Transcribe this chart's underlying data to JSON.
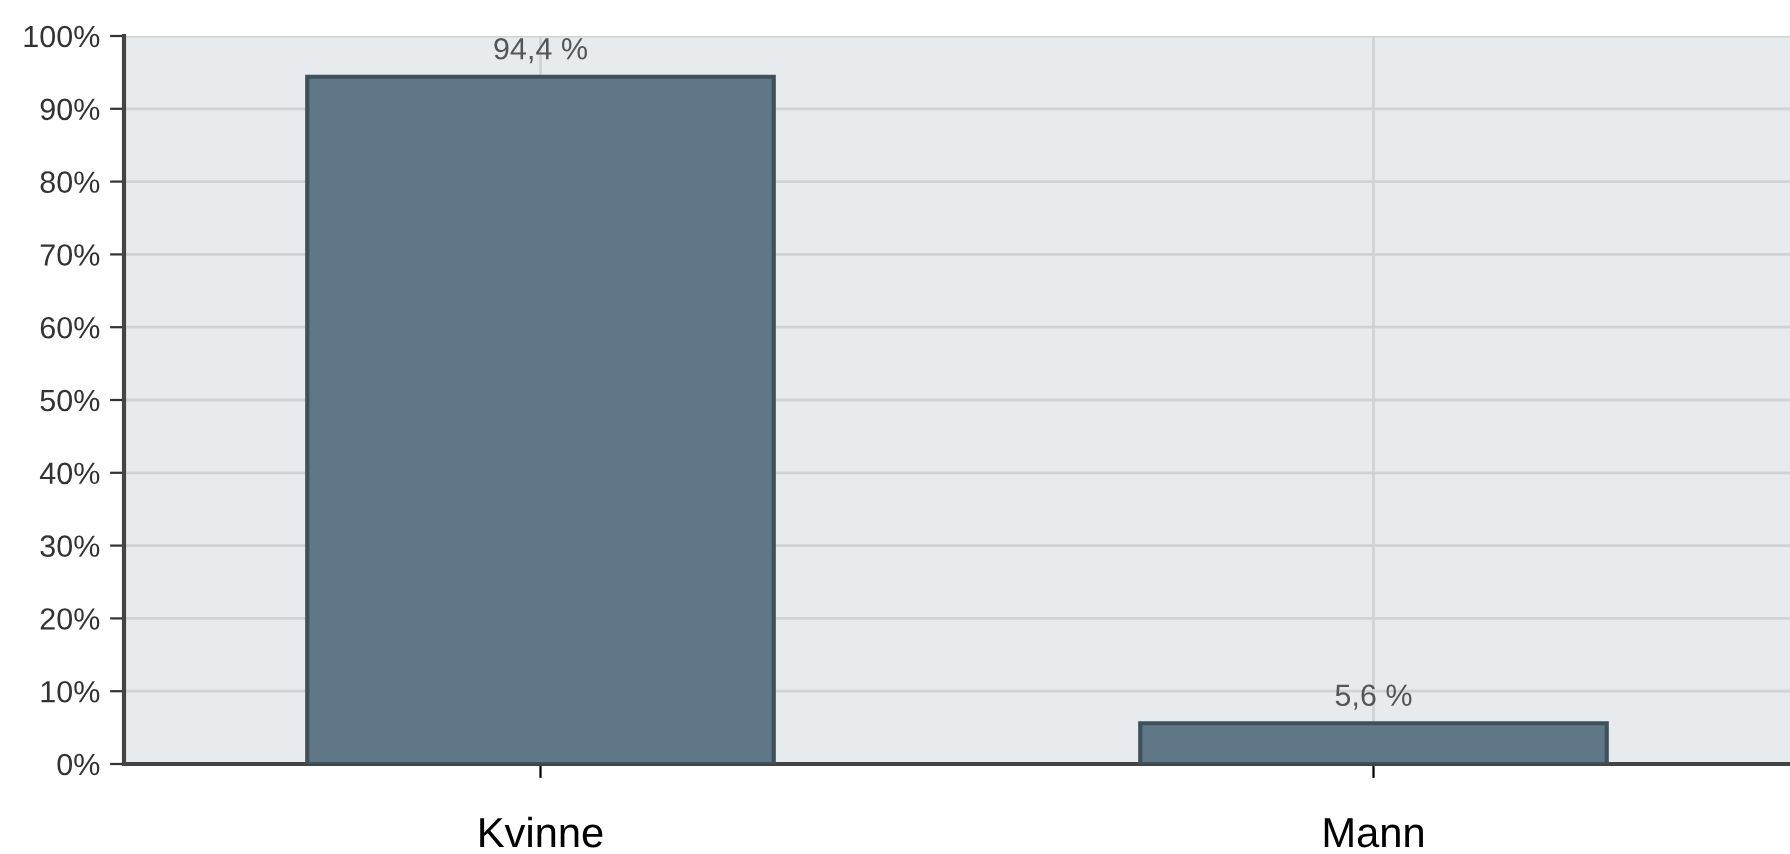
{
  "chart_data": {
    "type": "bar",
    "categories": [
      "Kvinne",
      "Mann"
    ],
    "values": [
      94.4,
      5.6
    ],
    "color": "#5f7786",
    "value_labels": [
      "94,4 %",
      "5,6 %"
    ],
    "ylim": [
      0,
      100
    ],
    "yticks": [
      {
        "value": 0,
        "label": "0%"
      },
      {
        "value": 10,
        "label": "10%"
      },
      {
        "value": 20,
        "label": "20%"
      },
      {
        "value": 30,
        "label": "30%"
      },
      {
        "value": 40,
        "label": "40%"
      },
      {
        "value": 50,
        "label": "50%"
      },
      {
        "value": 60,
        "label": "60%"
      },
      {
        "value": 70,
        "label": "70%"
      },
      {
        "value": 80,
        "label": "80%"
      },
      {
        "value": 90,
        "label": "90%"
      },
      {
        "value": 100,
        "label": "100%"
      }
    ],
    "grid": true
  }
}
